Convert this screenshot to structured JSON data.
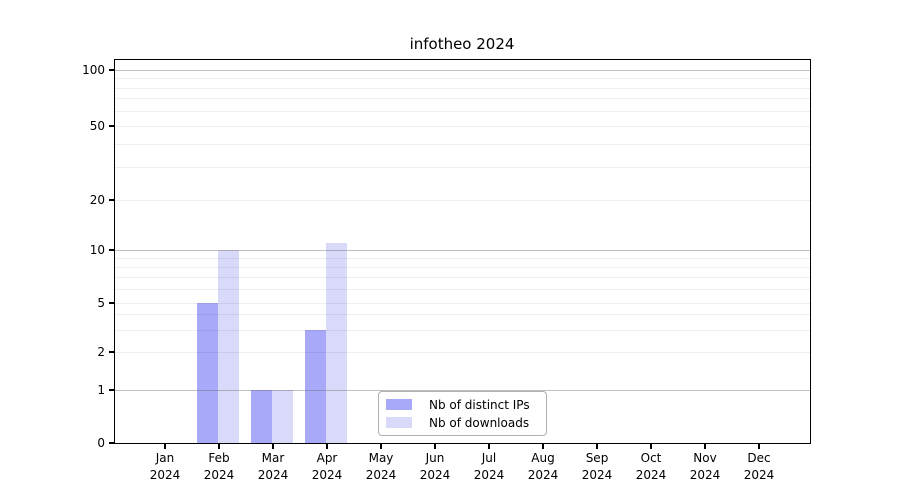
{
  "title": "infotheo 2024",
  "year_label": "2024",
  "chart_data": {
    "type": "bar",
    "title": "infotheo 2024",
    "categories": [
      "Jan 2024",
      "Feb 2024",
      "Mar 2024",
      "Apr 2024",
      "May 2024",
      "Jun 2024",
      "Jul 2024",
      "Aug 2024",
      "Sep 2024",
      "Oct 2024",
      "Nov 2024",
      "Dec 2024"
    ],
    "months": [
      "Jan",
      "Feb",
      "Mar",
      "Apr",
      "May",
      "Jun",
      "Jul",
      "Aug",
      "Sep",
      "Oct",
      "Nov",
      "Dec"
    ],
    "series": [
      {
        "name": "Nb of distinct IPs",
        "color": "#a9a9fa",
        "values": [
          0,
          5,
          1,
          3,
          0,
          0,
          0,
          0,
          0,
          0,
          0,
          0
        ]
      },
      {
        "name": "Nb of downloads",
        "color": "#d9d9fa",
        "values": [
          0,
          10,
          1,
          11,
          0,
          0,
          0,
          0,
          0,
          0,
          0,
          0
        ]
      }
    ],
    "yscale": "log1p",
    "yticks": [
      0,
      1,
      2,
      5,
      10,
      20,
      50,
      100
    ],
    "minor_gridlines": [
      2,
      3,
      4,
      5,
      6,
      7,
      8,
      9,
      20,
      30,
      40,
      50,
      60,
      70,
      80,
      90
    ],
    "major_gridlines": [
      1,
      10,
      100
    ],
    "ylim": [
      0,
      113
    ],
    "grid": "both",
    "legend_position": "lower-center"
  },
  "colors": {
    "bar_dark": "#a9a9fa",
    "bar_light": "#d9d9fa",
    "spine": "#000000",
    "legend_border": "#b0b0b0"
  }
}
